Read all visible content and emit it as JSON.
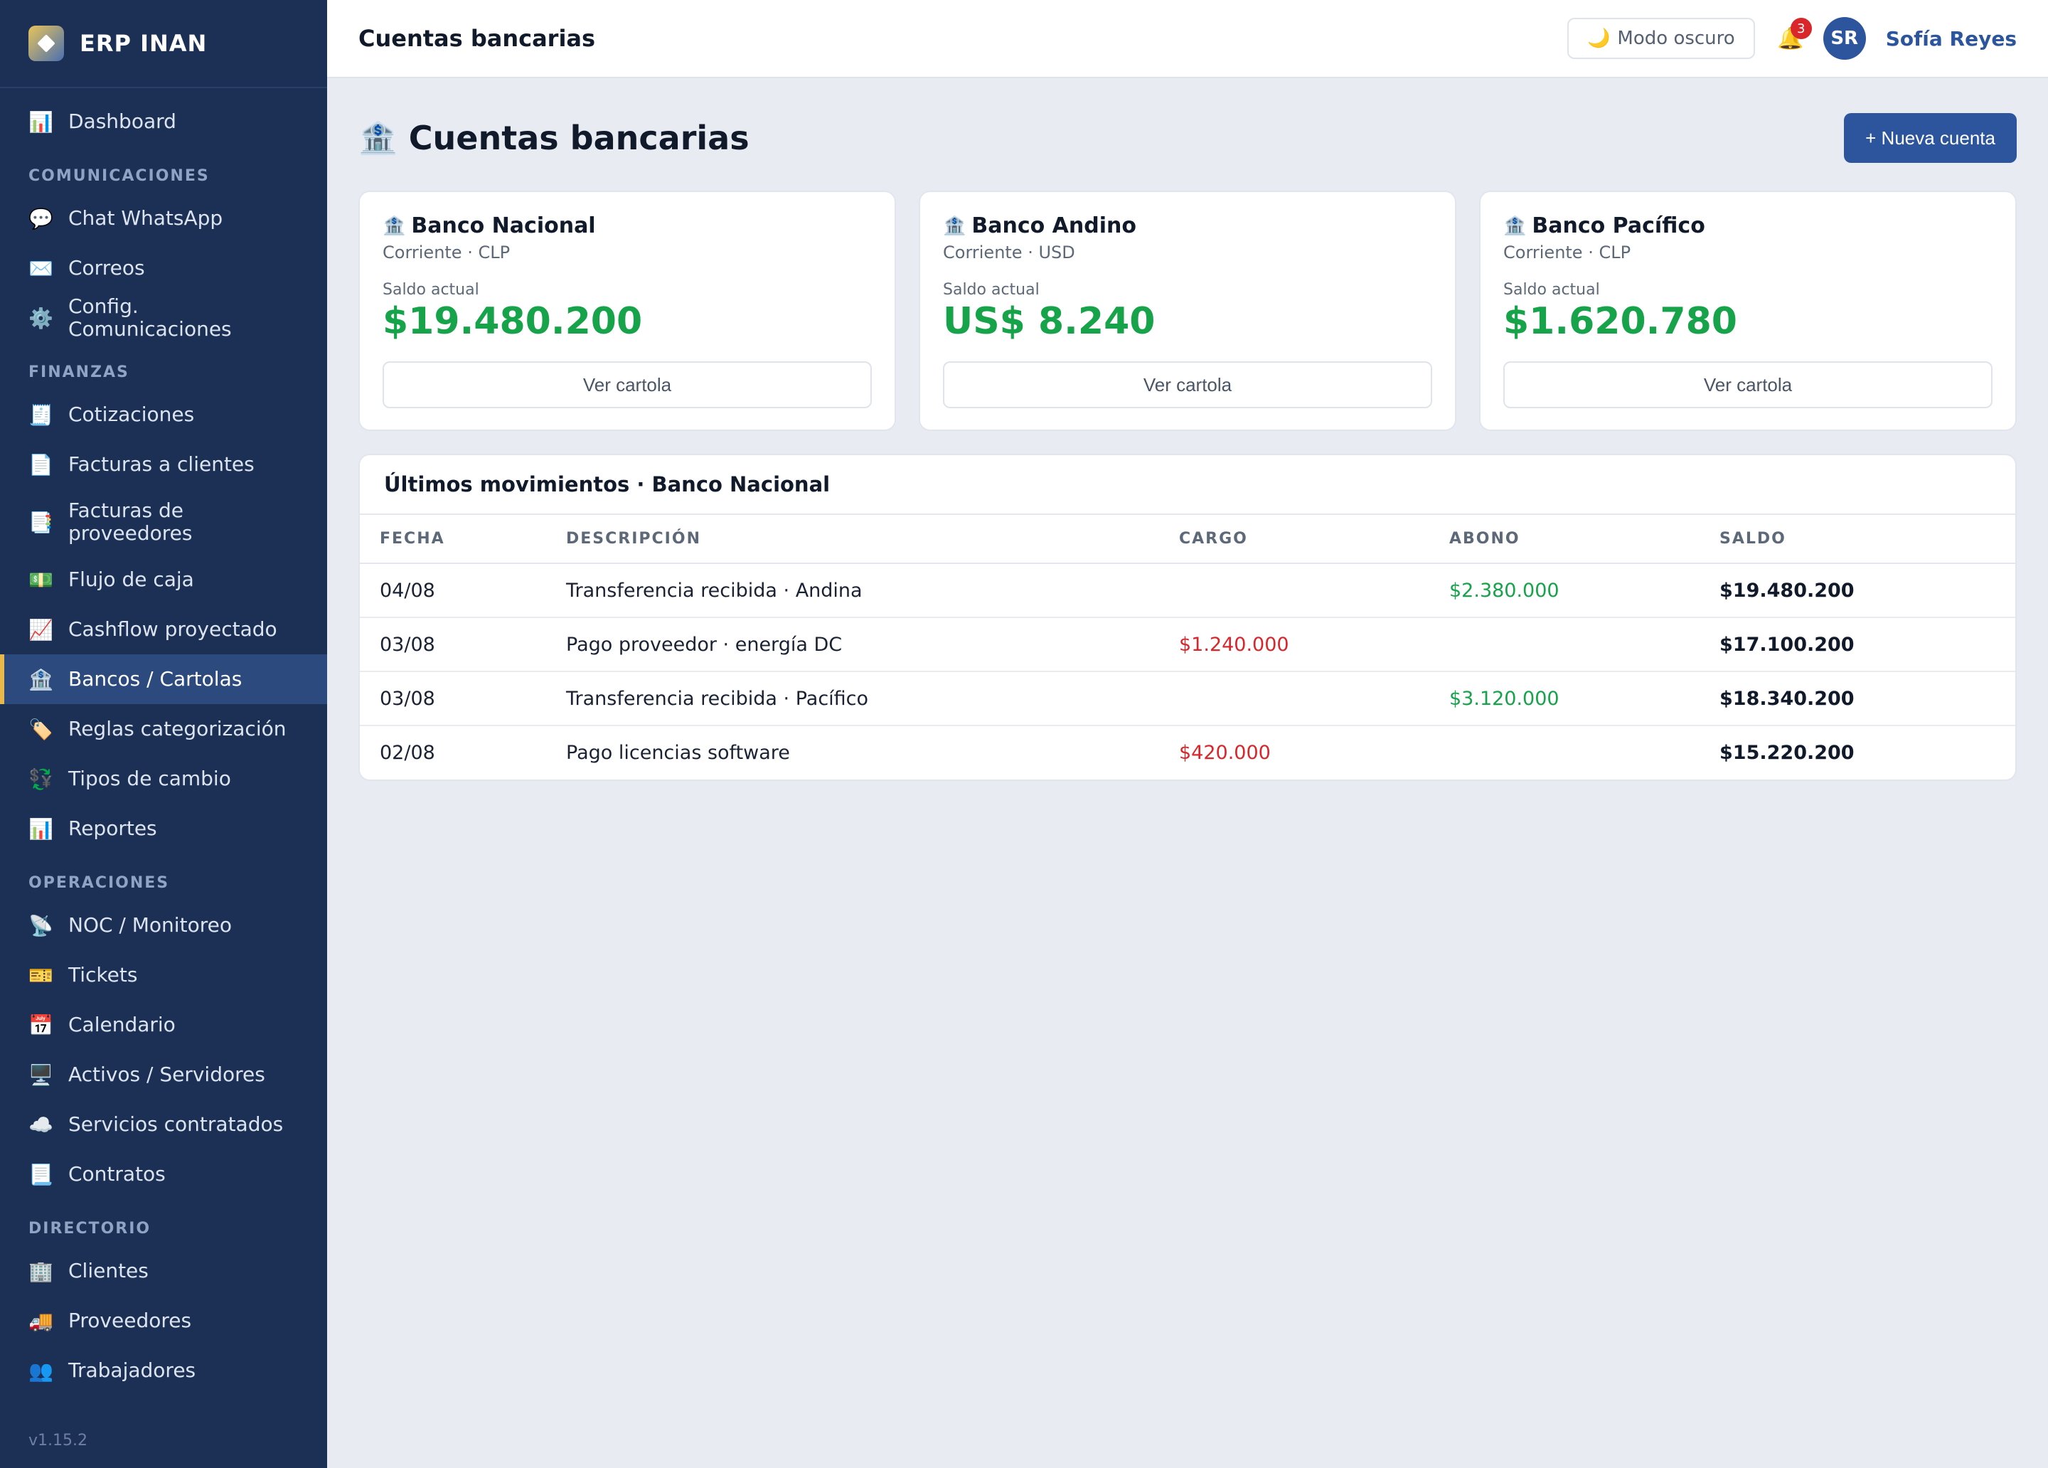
{
  "app": {
    "brand_name": "ERP INAN",
    "version": "v1.15.2"
  },
  "sidebar": {
    "top_items": [
      {
        "label": "Dashboard",
        "icon": "📊",
        "icon_name": "chart-icon"
      }
    ],
    "sections": [
      {
        "title": "COMUNICACIONES",
        "items": [
          {
            "label": "Chat WhatsApp",
            "icon": "💬",
            "icon_name": "chat-icon"
          },
          {
            "label": "Correos",
            "icon": "✉️",
            "icon_name": "mail-icon"
          },
          {
            "label": "Config. Comunicaciones",
            "icon": "⚙️",
            "icon_name": "gear-icon"
          }
        ]
      },
      {
        "title": "FINANZAS",
        "items": [
          {
            "label": "Cotizaciones",
            "icon": "🧾",
            "icon_name": "receipt-icon"
          },
          {
            "label": "Facturas a clientes",
            "icon": "📄",
            "icon_name": "document-icon"
          },
          {
            "label": "Facturas de proveedores",
            "icon": "📑",
            "icon_name": "documents-icon"
          },
          {
            "label": "Flujo de caja",
            "icon": "💵",
            "icon_name": "cash-icon"
          },
          {
            "label": "Cashflow proyectado",
            "icon": "📈",
            "icon_name": "trend-icon"
          },
          {
            "label": "Bancos / Cartolas",
            "icon": "🏦",
            "icon_name": "bank-icon",
            "active": true
          },
          {
            "label": "Reglas categorización",
            "icon": "🏷️",
            "icon_name": "tag-icon"
          },
          {
            "label": "Tipos de cambio",
            "icon": "💱",
            "icon_name": "exchange-icon"
          },
          {
            "label": "Reportes",
            "icon": "📊",
            "icon_name": "chart-icon"
          }
        ]
      },
      {
        "title": "OPERACIONES",
        "items": [
          {
            "label": "NOC / Monitoreo",
            "icon": "📡",
            "icon_name": "antenna-icon"
          },
          {
            "label": "Tickets",
            "icon": "🎫",
            "icon_name": "ticket-icon"
          },
          {
            "label": "Calendario",
            "icon": "📅",
            "icon_name": "calendar-icon"
          },
          {
            "label": "Activos / Servidores",
            "icon": "🖥️",
            "icon_name": "monitor-icon"
          },
          {
            "label": "Servicios contratados",
            "icon": "☁️",
            "icon_name": "cloud-icon"
          },
          {
            "label": "Contratos",
            "icon": "📃",
            "icon_name": "contract-icon"
          }
        ]
      },
      {
        "title": "DIRECTORIO",
        "items": [
          {
            "label": "Clientes",
            "icon": "🏢",
            "icon_name": "building-icon"
          },
          {
            "label": "Proveedores",
            "icon": "🚚",
            "icon_name": "truck-icon"
          },
          {
            "label": "Trabajadores",
            "icon": "👥",
            "icon_name": "people-icon"
          }
        ]
      }
    ]
  },
  "topbar": {
    "title": "Cuentas bancarias",
    "dark_mode_label": "Modo oscuro",
    "dark_mode_icon": "🌙",
    "bell_icon": "🔔",
    "notification_count": "3",
    "avatar_initials": "SR",
    "user_name": "Sofía Reyes"
  },
  "page": {
    "title": "Cuentas bancarias",
    "title_icon": "🏦",
    "new_account_label": "+ Nueva cuenta"
  },
  "accounts": [
    {
      "name": "Banco Nacional",
      "icon": "🏦",
      "subtitle": "Corriente · CLP",
      "balance_label": "Saldo actual",
      "balance": "$19.480.200",
      "button_label": "Ver cartola"
    },
    {
      "name": "Banco Andino",
      "icon": "🏦",
      "subtitle": "Corriente · USD",
      "balance_label": "Saldo actual",
      "balance": "US$ 8.240",
      "button_label": "Ver cartola"
    },
    {
      "name": "Banco Pacífico",
      "icon": "🏦",
      "subtitle": "Corriente · CLP",
      "balance_label": "Saldo actual",
      "balance": "$1.620.780",
      "button_label": "Ver cartola"
    }
  ],
  "movements": {
    "title": "Últimos movimientos · Banco Nacional",
    "columns": [
      "FECHA",
      "DESCRIPCIÓN",
      "CARGO",
      "ABONO",
      "SALDO"
    ],
    "rows": [
      {
        "fecha": "04/08",
        "descripcion": "Transferencia recibida · Andina",
        "cargo": "",
        "abono": "$2.380.000",
        "saldo": "$19.480.200"
      },
      {
        "fecha": "03/08",
        "descripcion": "Pago proveedor · energía DC",
        "cargo": "$1.240.000",
        "abono": "",
        "saldo": "$17.100.200"
      },
      {
        "fecha": "03/08",
        "descripcion": "Transferencia recibida · Pacífico",
        "cargo": "",
        "abono": "$3.120.000",
        "saldo": "$18.340.200"
      },
      {
        "fecha": "02/08",
        "descripcion": "Pago licencias software",
        "cargo": "$420.000",
        "abono": "",
        "saldo": "$15.220.200"
      }
    ]
  },
  "colors": {
    "sidebar_bg": "#1c2f55",
    "accent": "#2c559e",
    "positive": "#16a34a",
    "negative": "#d9262b",
    "active_marker": "#e8b84a"
  }
}
